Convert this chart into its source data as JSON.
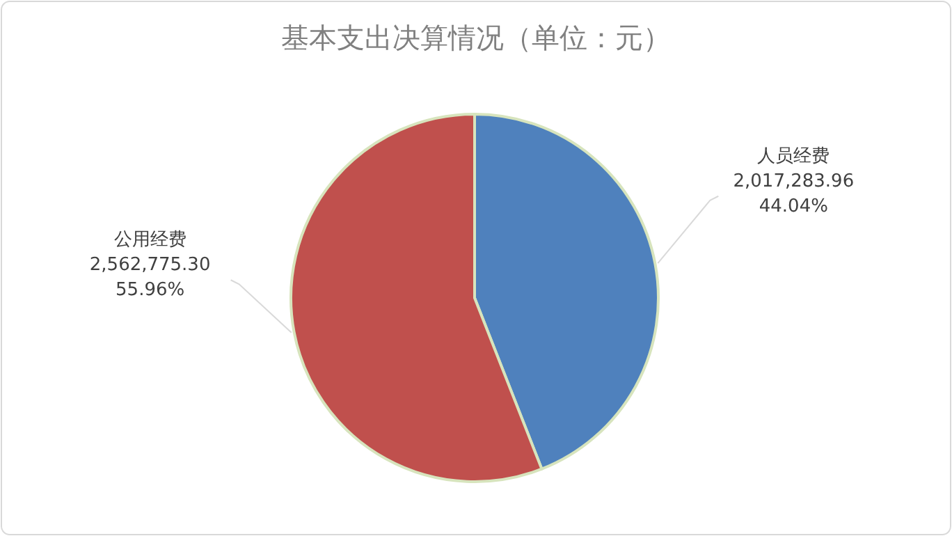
{
  "chart_data": {
    "type": "pie",
    "title": "基本支出决算情况（单位：元）",
    "categories": [
      "人员经费",
      "公用经费"
    ],
    "values": [
      2017283.96,
      2562775.3
    ],
    "colors": [
      "#4f81bd",
      "#c0504d"
    ],
    "value_labels": [
      "2,017,283.96",
      "2,562,775.30"
    ],
    "annotations": [
      "44.04%",
      "55.96%"
    ]
  }
}
